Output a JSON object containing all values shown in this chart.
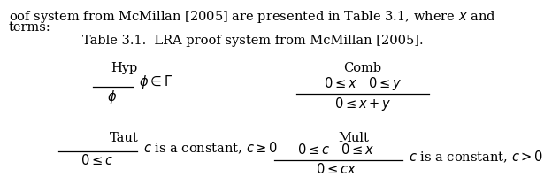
{
  "title": "Table 3.1.  LRA proof system from McMillan [2005].",
  "bg_color": "#ffffff",
  "text_color": "#000000",
  "title_fs": 10.5,
  "rule_label_fs": 10.5,
  "math_fs": 10.5,
  "context_text_1": "oof system from McMillan [2005] are presented in Table 3.1, where $x$ and",
  "context_text_2": "terms:",
  "hyp_label": "Hyp",
  "hyp_numerator": "",
  "hyp_denominator": "$\\phi$",
  "hyp_condition": "$\\phi \\in \\Gamma$",
  "comb_label": "Comb",
  "comb_numerator": "$0 \\leq x \\quad 0 \\leq y$",
  "comb_denominator": "$0 \\leq x + y$",
  "taut_label": "Taut",
  "taut_numerator": "",
  "taut_denominator": "$0 \\leq c$",
  "taut_condition": "$c$ is a constant, $c \\geq 0$",
  "mult_label": "Mult",
  "mult_numerator": "$0 \\leq c \\quad 0 \\leq x$",
  "mult_denominator": "$0 \\leq cx$",
  "mult_condition": "$c$ is a constant, $c > 0$"
}
